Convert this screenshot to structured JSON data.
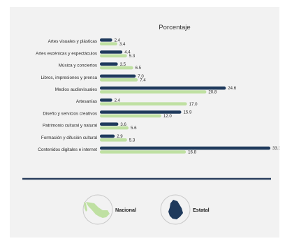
{
  "chart_data": {
    "type": "bar",
    "orientation": "horizontal",
    "title": "Porcentaje",
    "categories": [
      "Artes visuales y plásticas",
      "Artes escénicas y espectáculos",
      "Música y conciertos",
      "Libros, impresiones y prensa",
      "Medios audiovisuales",
      "Artesanías",
      "Diseño y servicios creativos",
      "Patrimonio cultural y natural",
      "Formación y difusión cultural",
      "Contenidos digitales e internet"
    ],
    "series": [
      {
        "name": "Estatal",
        "color": "#1f3a5c",
        "values": [
          2.4,
          4.4,
          3.5,
          7.0,
          24.6,
          2.4,
          15.9,
          3.6,
          2.9,
          33.3
        ],
        "labels": [
          "2.4",
          "4.4",
          "3.5",
          "7.0",
          "24.6",
          "2.4",
          "15.9",
          "3.6",
          "2.9",
          "33.3"
        ]
      },
      {
        "name": "Nacional",
        "color": "#bfe0a2",
        "values": [
          3.4,
          5.3,
          6.5,
          7.4,
          20.8,
          17.0,
          12.0,
          5.6,
          5.3,
          16.8
        ],
        "labels": [
          "3.4",
          "5.3",
          "6.5",
          "7.4",
          "20.8",
          "17.0",
          "12.0",
          "5.6",
          "5.3",
          "16.8"
        ]
      }
    ],
    "xlim": [
      0,
      33.3
    ],
    "grid": false,
    "legend": {
      "placement": "bottom",
      "items": [
        {
          "label": "Nacional",
          "icon": "mexico-map-icon",
          "color": "#bfe0a2"
        },
        {
          "label": "Estatal",
          "icon": "state-map-icon",
          "color": "#1f3a5c"
        }
      ]
    }
  }
}
